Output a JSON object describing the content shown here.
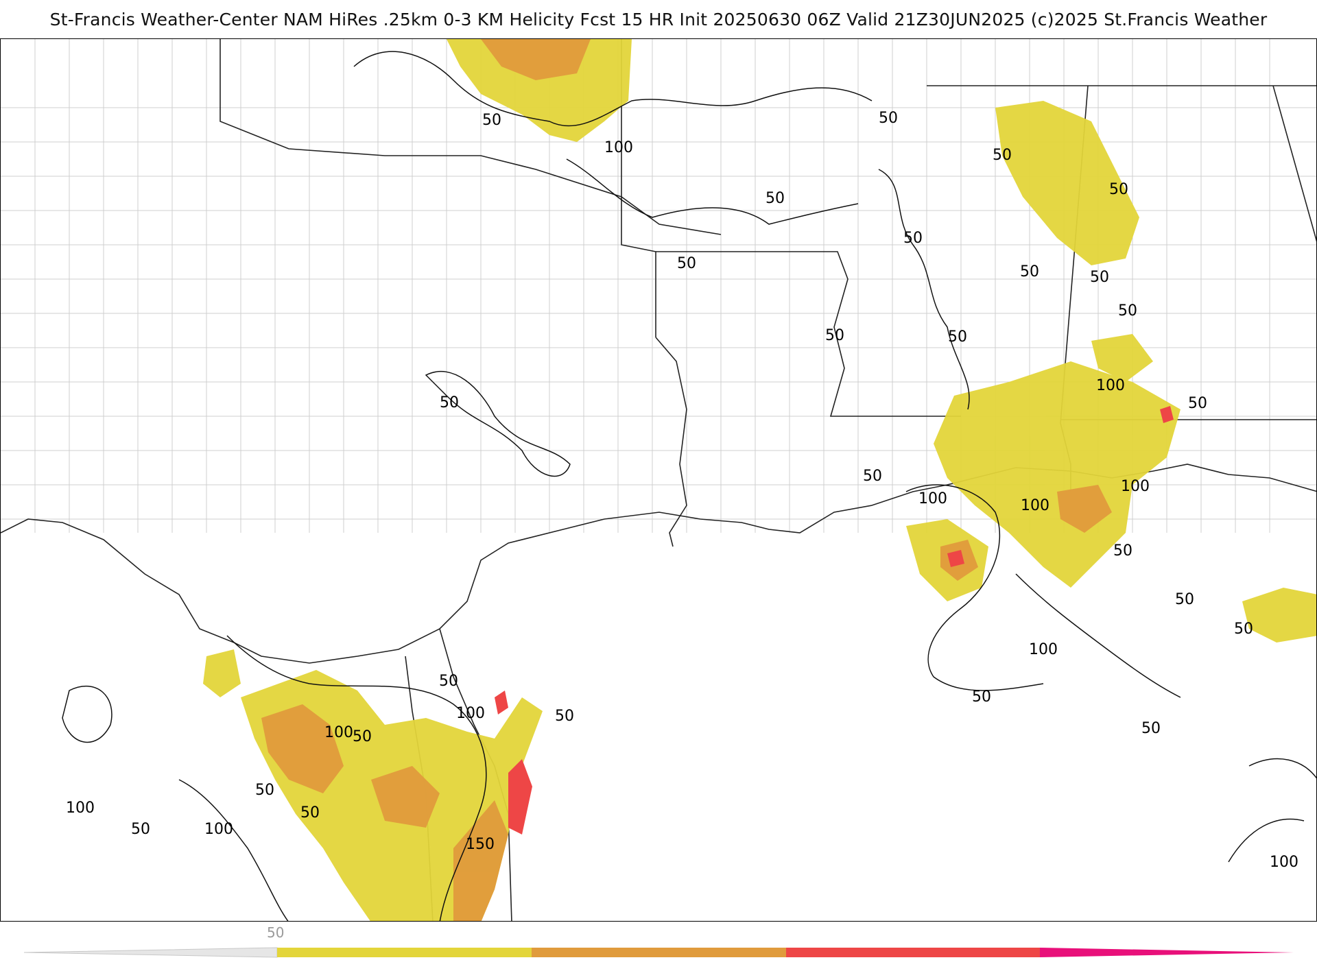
{
  "title": "St-Francis Weather-Center NAM HiRes .25km 0-3 KM Helicity Fcst 15 HR Init 20250630 06Z  Valid 21Z30JUN2025     (c)2025 St.Francis Weather",
  "colors": {
    "level_50": "#e3d53a",
    "level_100": "#e09b3c",
    "level_150": "#ee4646",
    "level_200": "#e8107a",
    "contour": "#111111",
    "county_lines": "#c9c9c9",
    "state_lines": "#222222"
  },
  "contour_labels": [
    {
      "text": "50"
    },
    {
      "text": "100"
    },
    {
      "text": "50"
    },
    {
      "text": "50"
    },
    {
      "text": "50"
    },
    {
      "text": "50"
    },
    {
      "text": "50"
    },
    {
      "text": "50"
    },
    {
      "text": "50"
    },
    {
      "text": "50"
    },
    {
      "text": "50"
    },
    {
      "text": "50"
    },
    {
      "text": "50"
    },
    {
      "text": "50"
    },
    {
      "text": "100"
    },
    {
      "text": "50"
    },
    {
      "text": "50"
    },
    {
      "text": "100"
    },
    {
      "text": "100"
    },
    {
      "text": "100"
    },
    {
      "text": "50"
    },
    {
      "text": "50"
    },
    {
      "text": "50"
    },
    {
      "text": "100"
    },
    {
      "text": "50"
    },
    {
      "text": "50"
    },
    {
      "text": "50"
    },
    {
      "text": "100"
    },
    {
      "text": "50"
    },
    {
      "text": "100"
    },
    {
      "text": "50"
    },
    {
      "text": "50"
    },
    {
      "text": "100"
    },
    {
      "text": "50"
    },
    {
      "text": "50"
    },
    {
      "text": "100"
    },
    {
      "text": "150"
    },
    {
      "text": "100"
    }
  ],
  "legend": {
    "tick_label": "50",
    "levels": [
      50,
      100,
      150,
      200
    ]
  }
}
